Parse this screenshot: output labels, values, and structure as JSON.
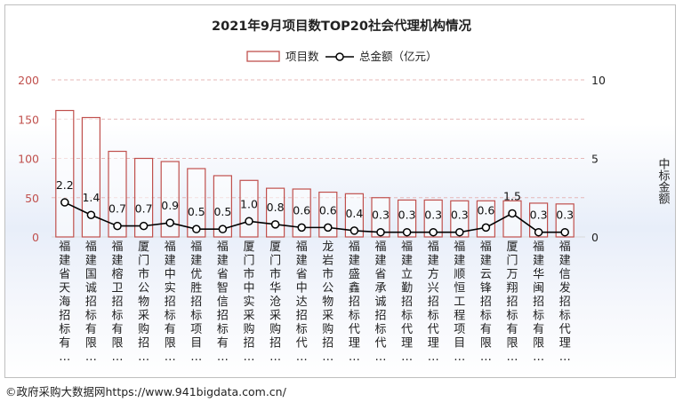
{
  "chart_data": {
    "type": "bar",
    "title": "2021年9月项目数TOP20社会代理机构情况",
    "categories": [
      "福建省天海招标有…",
      "福建国诚招标有限…",
      "福建榕卫招标有限…",
      "厦门市公物采购招…",
      "福建中实招标有限…",
      "福建优胜招标项目…",
      "福建省智信招标有…",
      "厦门市中实采购招…",
      "厦门市华沧采购招…",
      "福建省中达招标代…",
      "龙岩市公物采购招…",
      "福建盛鑫招标代理…",
      "福建省承诚招标代…",
      "福建立勤招标代理…",
      "福建方兴招标代理…",
      "福建顺恒工程项目…",
      "福建云锋招标有限…",
      "厦门万翔招标有限…",
      "福建华闽招标有限…",
      "福建信发招标代理…"
    ],
    "series": [
      {
        "name": "项目数",
        "type": "bar",
        "axis": "left",
        "color": "#c0504d",
        "values": [
          161,
          152,
          109,
          100,
          96,
          87,
          78,
          72,
          62,
          61,
          57,
          55,
          50,
          47,
          47,
          46,
          46,
          46,
          43,
          42
        ]
      },
      {
        "name": "总金额（亿元）",
        "type": "line",
        "axis": "right",
        "color": "#000000",
        "values": [
          2.2,
          1.4,
          0.7,
          0.7,
          0.9,
          0.5,
          0.5,
          1.0,
          0.8,
          0.6,
          0.6,
          0.4,
          0.3,
          0.3,
          0.3,
          0.3,
          0.6,
          1.5,
          0.3,
          0.3
        ]
      }
    ],
    "ylim_left": [
      0,
      200
    ],
    "yticks_left": [
      "0",
      "50",
      "100",
      "150",
      "200"
    ],
    "ylim_right": [
      0,
      10
    ],
    "yticks_right": [
      "0",
      "5",
      "10"
    ],
    "ylabel_right": "中标金额",
    "legend_position": "top-center",
    "gridlines": "dashed"
  },
  "footer": {
    "credit": "©政府采购大数据网https://www.941bigdata.com.cn/"
  }
}
